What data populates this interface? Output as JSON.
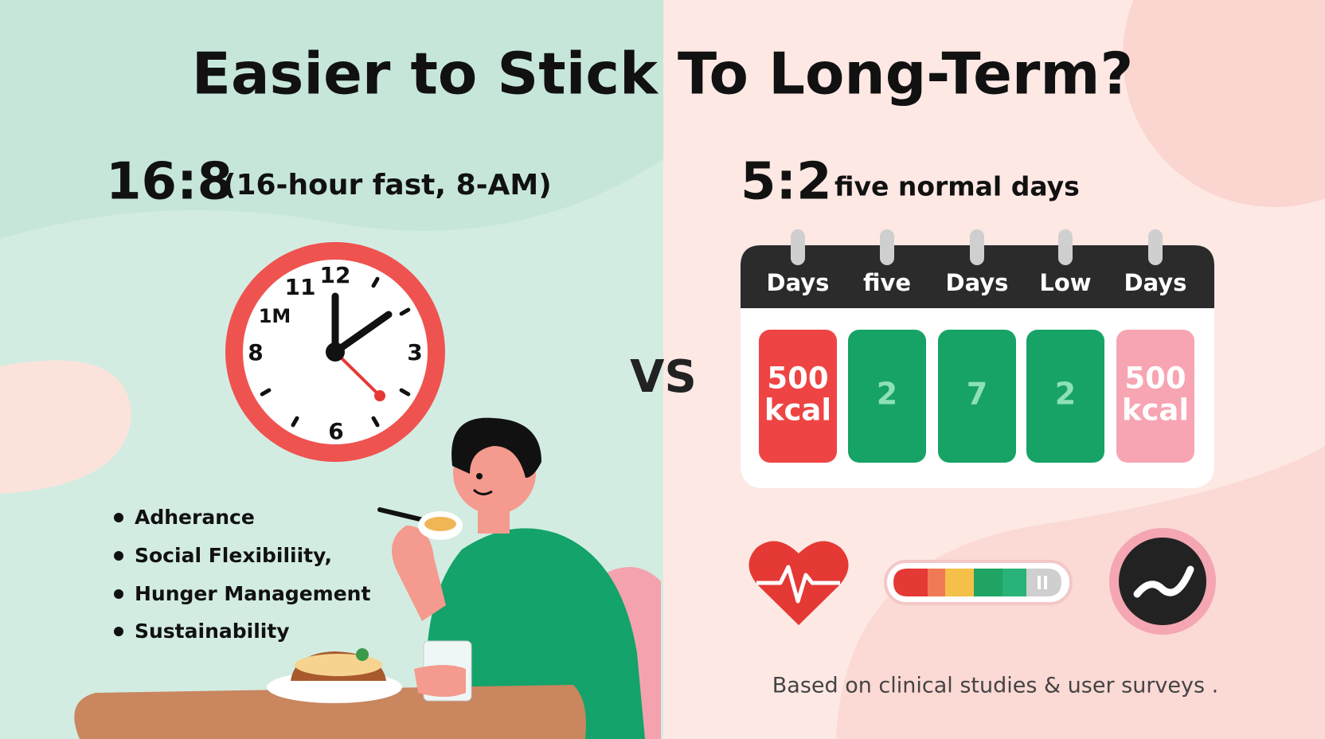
{
  "title": "Easier to Stick To Long-Term?",
  "left": {
    "heading": "16:8",
    "subheading": "(16-hour fast,  8-AM)",
    "clock_labels": [
      "12",
      "11",
      "1M",
      "8",
      "3",
      "6"
    ],
    "bullets": [
      "Adherance",
      "Social Flexibiliity,",
      "Hunger Management",
      "Sustainability"
    ]
  },
  "versus": "VS",
  "right": {
    "heading": "5:2",
    "subheading": "five normal days",
    "calendar_headers": [
      "Days",
      "five",
      "Days",
      "Low",
      "Days"
    ],
    "calendar_cells": [
      [
        "500",
        "kcal"
      ],
      [
        "2"
      ],
      [
        "7"
      ],
      [
        "2"
      ],
      [
        "500",
        "kcal"
      ]
    ]
  },
  "footer": "Based on clinical studies & user surveys ."
}
